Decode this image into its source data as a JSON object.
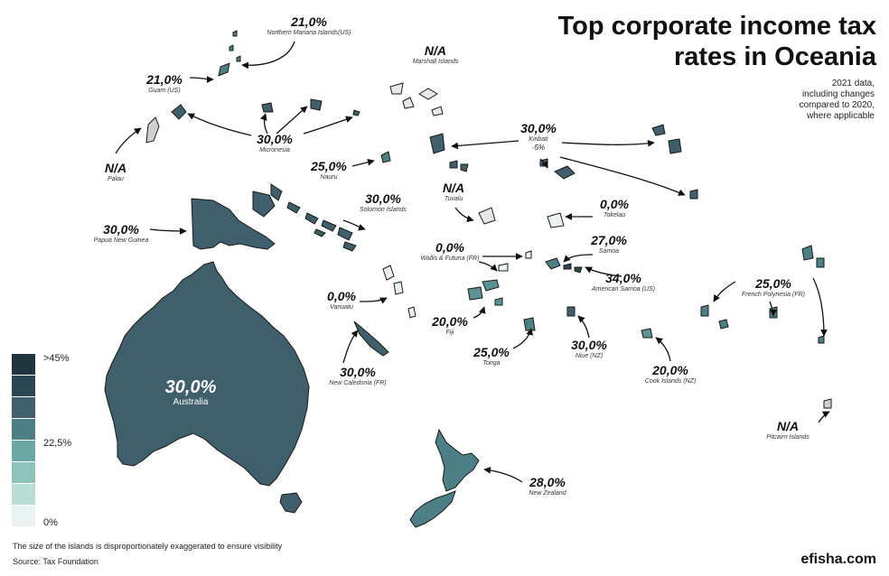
{
  "header": {
    "title_line1": "Top corporate income tax",
    "title_line2": "rates in Oceania",
    "subtitle_line1": "2021 data,",
    "subtitle_line2": "including changes",
    "subtitle_line3": "compared to 2020,",
    "subtitle_line4": "where applicable"
  },
  "colors": {
    "water": "#ffffff",
    "land_30": "#3e5f6b",
    "land_25": "#4c7f86",
    "land_20": "#5a9296",
    "land_0": "#e8f2f0",
    "na": "#cfcfcf",
    "outline": "#1a1a1a"
  },
  "countries": {
    "nmi": {
      "value": "21,0%",
      "name": "Northern Mariana Islands(US)"
    },
    "guam": {
      "value": "21,0%",
      "name": "Guam (US)"
    },
    "palau": {
      "value": "N/A",
      "name": "Palau"
    },
    "micronesia": {
      "value": "30,0%",
      "name": "Micronesia"
    },
    "marshall": {
      "value": "N/A",
      "name": "Marshall Islands"
    },
    "nauru": {
      "value": "25,0%",
      "name": "Nauru"
    },
    "kiribati": {
      "value": "30,0%",
      "name": "Kiribati",
      "change": "-5%"
    },
    "png": {
      "value": "30,0%",
      "name": "Papua New Guinea"
    },
    "solomon": {
      "value": "30,0%",
      "name": "Solomon Islands"
    },
    "tuvalu": {
      "value": "N/A",
      "name": "Tuvalu"
    },
    "tokelau": {
      "value": "0,0%",
      "name": "Tokelau"
    },
    "wallis": {
      "value": "0,0%",
      "name": "Wallis & Futuna (FR)"
    },
    "samoa": {
      "value": "27,0%",
      "name": "Samoa"
    },
    "amsamoa": {
      "value": "34,0%",
      "name": "American Samoa (US)"
    },
    "frpoly": {
      "value": "25,0%",
      "name": "French Polynesia (FR)"
    },
    "vanuatu": {
      "value": "0,0%",
      "name": "Vanuatu"
    },
    "fiji": {
      "value": "20,0%",
      "name": "Fiji"
    },
    "tonga": {
      "value": "25,0%",
      "name": "Tonga"
    },
    "niue": {
      "value": "30,0%",
      "name": "Niue (NZ)"
    },
    "cook": {
      "value": "20,0%",
      "name": "Cook Islands (NZ)"
    },
    "newcal": {
      "value": "30,0%",
      "name": "New Caledonia (FR)"
    },
    "australia": {
      "value": "30,0%",
      "name": "Australia"
    },
    "nz": {
      "value": "28,0%",
      "name": "New Zealand"
    },
    "pitcairn": {
      "value": "N/A",
      "name": "Pitcairn Islands"
    }
  },
  "legend": {
    "max_label": ">45%",
    "mid_label": "22,5%",
    "min_label": "0%",
    "colors": [
      "#1e3540",
      "#2b4753",
      "#3e5f6b",
      "#4c7f86",
      "#6aa8a6",
      "#8dc3bb",
      "#b8ddd5",
      "#e8f2f0"
    ]
  },
  "footer": {
    "footnote": "The size of the islands is disproportionately exaggerated to ensure visibility",
    "source": "Source: Tax Foundation",
    "brand": "efisha.com"
  }
}
